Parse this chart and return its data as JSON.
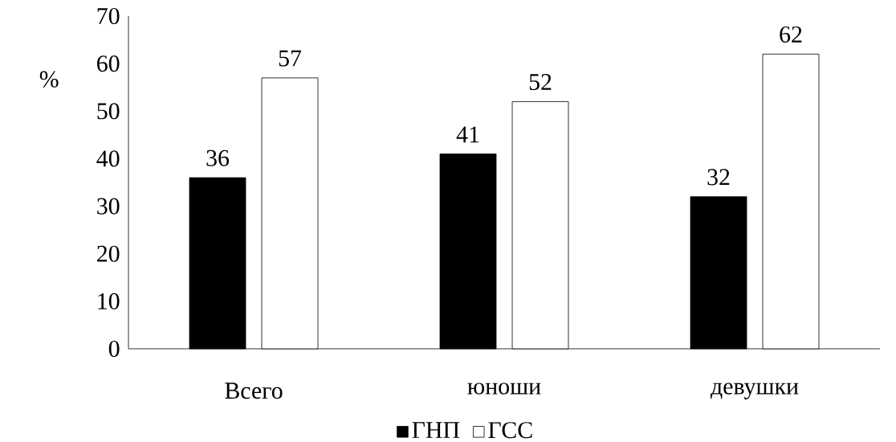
{
  "chart_data": {
    "type": "bar",
    "ylabel": "%",
    "categories": [
      "Всего",
      "юноши",
      "девушки"
    ],
    "series": [
      {
        "name": "ГНП",
        "color": "#000000",
        "values": [
          36,
          41,
          32
        ]
      },
      {
        "name": "ГСС",
        "color": "#ffffff",
        "values": [
          57,
          52,
          62
        ]
      }
    ],
    "ylim": [
      0,
      70
    ],
    "yticks": [
      0,
      10,
      20,
      30,
      40,
      50,
      60,
      70
    ],
    "data_labels": true,
    "legend": "bottom",
    "grid": false
  }
}
